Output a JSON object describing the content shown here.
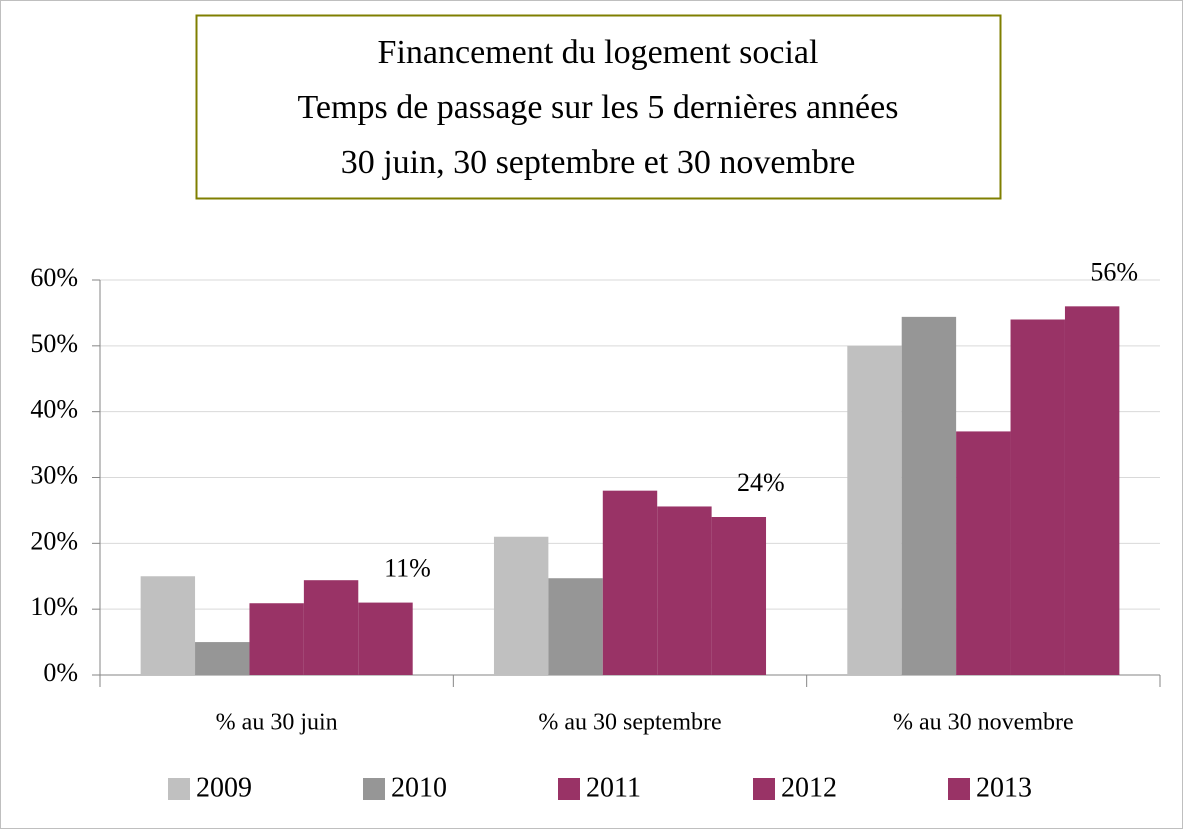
{
  "chart_data": {
    "type": "bar",
    "title": [
      "Financement du logement social",
      "Temps de passage sur les 5 dernières années",
      "30 juin, 30 septembre et 30 novembre"
    ],
    "categories": [
      "% au 30 juin",
      "% au 30 septembre",
      "% au 30 novembre"
    ],
    "series": [
      {
        "name": "2009",
        "color": "#c0c0c0",
        "values": [
          15,
          21,
          50
        ]
      },
      {
        "name": "2010",
        "color": "#969696",
        "values": [
          5,
          14.7,
          54.4
        ]
      },
      {
        "name": "2011",
        "color": "#993366",
        "values": [
          10.9,
          28,
          37
        ]
      },
      {
        "name": "2012",
        "color": "#993366",
        "values": [
          14.4,
          25.6,
          54
        ]
      },
      {
        "name": "2013",
        "color": "#993366",
        "values": [
          11,
          24,
          56
        ],
        "value_labels": [
          "11%",
          "24%",
          "56%"
        ]
      }
    ],
    "ylim": [
      0,
      60
    ],
    "yticks": [
      {
        "value": 0,
        "label": "0%"
      },
      {
        "value": 10,
        "label": "10%"
      },
      {
        "value": 20,
        "label": "20%"
      },
      {
        "value": 30,
        "label": "30%"
      },
      {
        "value": 40,
        "label": "40%"
      },
      {
        "value": 50,
        "label": "50%"
      },
      {
        "value": 60,
        "label": "60%"
      }
    ],
    "grid": true,
    "legend": "bottom"
  }
}
